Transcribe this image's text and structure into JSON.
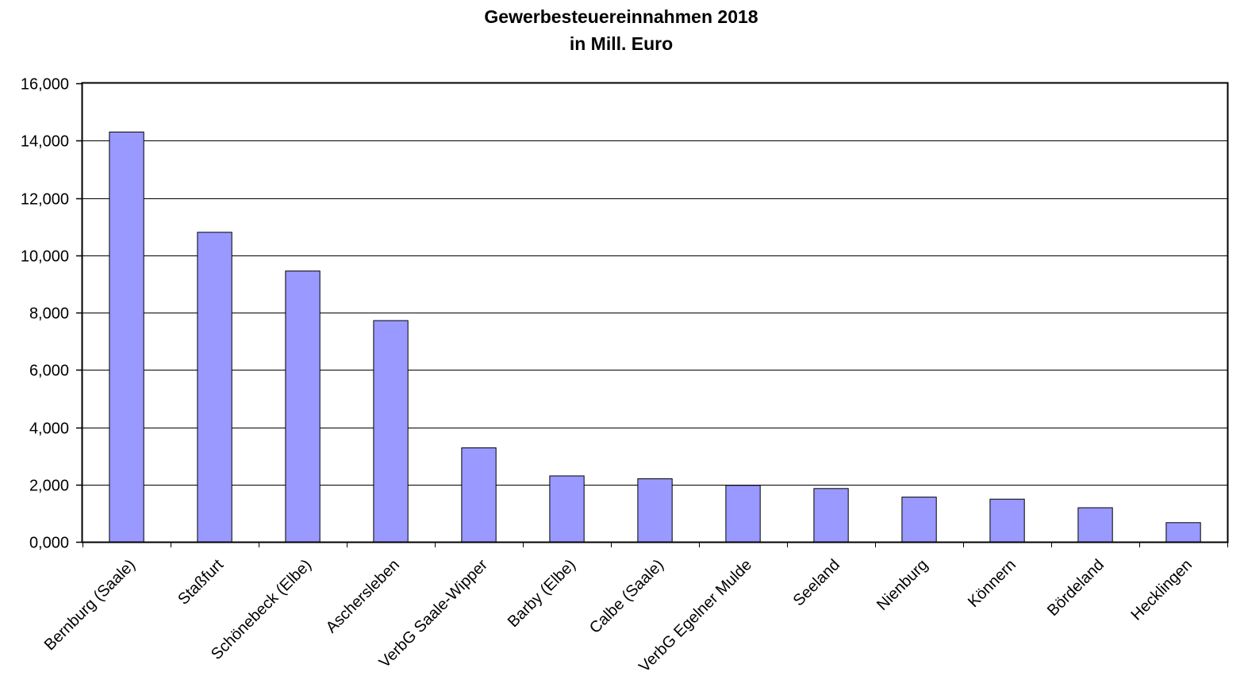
{
  "chart_data": {
    "type": "bar",
    "title": "Gewerbesteuereinnahmen 2018",
    "subtitle": "in Mill. Euro",
    "xlabel": "",
    "ylabel": "",
    "ylim": [
      0,
      16
    ],
    "yticks": [
      0,
      2,
      4,
      6,
      8,
      10,
      12,
      14,
      16
    ],
    "ytick_labels": [
      "0,000",
      "2,000",
      "4,000",
      "6,000",
      "8,000",
      "10,000",
      "12,000",
      "14,000",
      "16,000"
    ],
    "grid": true,
    "legend": "none",
    "bar_color": "#9999ff",
    "categories": [
      "Bernburg (Saale)",
      "Staßfurt",
      "Schönebeck (Elbe)",
      "Aschersleben",
      "VerbG Saale-Wipper",
      "Barby (Elbe)",
      "Calbe (Saale)",
      "VerbG Egelner Mulde",
      "Seeland",
      "Nienburg",
      "Könnern",
      "Bördeland",
      "Hecklingen"
    ],
    "values": [
      14.3,
      10.8,
      9.45,
      7.72,
      3.28,
      2.3,
      2.2,
      1.97,
      1.86,
      1.56,
      1.49,
      1.19,
      0.67
    ]
  }
}
